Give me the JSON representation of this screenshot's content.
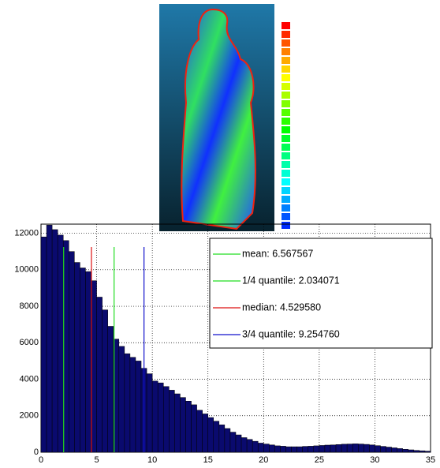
{
  "chart_data": {
    "type": "histogram",
    "bins": [
      0,
      0.5,
      1,
      1.5,
      2,
      2.5,
      3,
      3.5,
      4,
      4.5,
      5,
      5.5,
      6,
      6.5,
      7,
      7.5,
      8,
      8.5,
      9,
      9.5,
      10,
      10.5,
      11,
      11.5,
      12,
      12.5,
      13,
      13.5,
      14,
      14.5,
      15,
      15.5,
      16,
      16.5,
      17,
      17.5,
      18,
      18.5,
      19,
      19.5,
      20,
      20.5,
      21,
      21.5,
      22,
      22.5,
      23,
      23.5,
      24,
      24.5,
      25,
      25.5,
      26,
      26.5,
      27,
      27.5,
      28,
      28.5,
      29,
      29.5,
      30,
      30.5,
      31,
      31.5,
      32,
      32.5,
      33,
      33.5,
      34,
      34.5,
      35
    ],
    "values": [
      11800,
      12450,
      12200,
      11900,
      11600,
      11000,
      10400,
      10100,
      9900,
      9400,
      8500,
      7800,
      6900,
      6200,
      5800,
      5400,
      5200,
      5000,
      4600,
      4300,
      3900,
      3800,
      3600,
      3400,
      3200,
      3000,
      2800,
      2600,
      2300,
      2100,
      1900,
      1700,
      1500,
      1300,
      1100,
      950,
      800,
      700,
      600,
      500,
      450,
      400,
      350,
      330,
      300,
      300,
      300,
      320,
      330,
      350,
      370,
      390,
      400,
      420,
      440,
      450,
      460,
      450,
      430,
      400,
      360,
      320,
      280,
      240,
      200,
      160,
      130,
      100,
      80,
      60
    ],
    "color": "#0a0a6e",
    "xlim": [
      0,
      35
    ],
    "xticks": [
      0,
      5,
      10,
      15,
      20,
      25,
      30,
      35
    ],
    "ylim": [
      0,
      12500
    ],
    "yticks": [
      0,
      2000,
      4000,
      6000,
      8000,
      10000,
      12000
    ],
    "grid": true,
    "legend": "upper right",
    "lines": [
      {
        "name": "mean: 6.567567",
        "value": 6.567567,
        "color": "#22dd22"
      },
      {
        "name": "1/4 quantile: 2.034071",
        "value": 2.034071,
        "color": "#22dd22"
      },
      {
        "name": "median: 4.529580",
        "value": 4.52958,
        "color": "#dd1111"
      },
      {
        "name": "3/4 quantile: 9.254760",
        "value": 9.25476,
        "color": "#1111cc"
      }
    ]
  }
}
